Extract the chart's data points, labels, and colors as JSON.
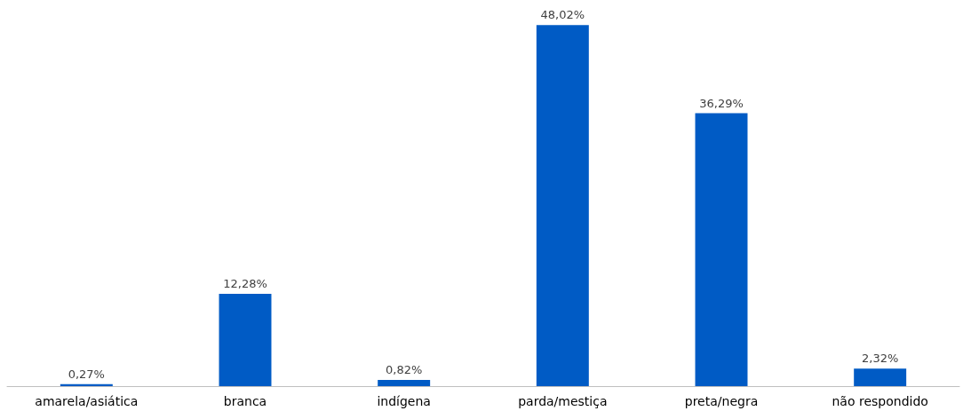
{
  "chart_data": {
    "type": "bar",
    "categories": [
      "amarela/asiática",
      "branca",
      "indígena",
      "parda/mestiça",
      "preta/negra",
      "não respondido"
    ],
    "values": [
      0.27,
      12.28,
      0.82,
      48.02,
      36.29,
      2.32
    ],
    "value_labels": [
      "0,27%",
      "12,28%",
      "0,82%",
      "48,02%",
      "36,29%",
      "2,32%"
    ],
    "color": "#005bc5"
  }
}
